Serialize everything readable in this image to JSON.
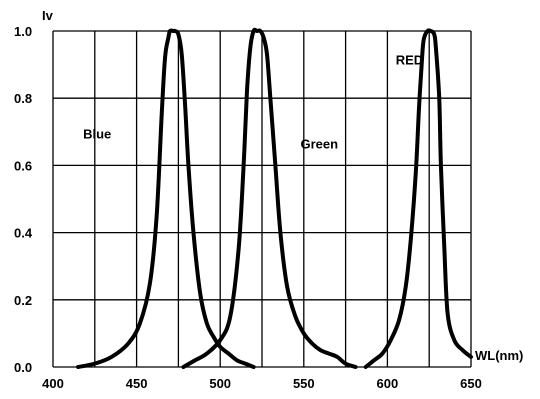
{
  "chart_data": {
    "type": "line",
    "ylabel": "Iv",
    "xlabel": "WL(nm)",
    "xlim": [
      400,
      650
    ],
    "ylim": [
      0,
      1.0
    ],
    "x_ticks": [
      "400",
      "450",
      "500",
      "550",
      "600",
      "650"
    ],
    "y_ticks": [
      "0.0",
      "0.2",
      "0.4",
      "0.6",
      "0.8",
      "1.0"
    ],
    "grid": true,
    "legend": "none",
    "series": [
      {
        "name": "Blue",
        "label_at": [
          418,
          0.68
        ],
        "x": [
          415,
          425,
          435,
          445,
          452,
          458,
          462,
          465,
          467,
          469,
          470,
          472,
          473,
          475,
          477,
          479,
          481,
          484,
          488,
          492,
          496,
          500,
          505,
          510,
          515,
          520
        ],
        "y": [
          0.0,
          0.01,
          0.03,
          0.07,
          0.13,
          0.25,
          0.45,
          0.75,
          0.92,
          0.98,
          1.0,
          1.0,
          1.0,
          0.99,
          0.93,
          0.78,
          0.6,
          0.4,
          0.22,
          0.13,
          0.09,
          0.06,
          0.04,
          0.02,
          0.01,
          0.0
        ]
      },
      {
        "name": "Green",
        "label_at": [
          548,
          0.65
        ],
        "x": [
          478,
          485,
          492,
          500,
          506,
          511,
          514,
          516,
          518,
          520,
          522,
          524,
          526,
          528,
          530,
          533,
          536,
          540,
          545,
          550,
          555,
          560,
          565,
          570,
          575,
          581
        ],
        "y": [
          0.0,
          0.02,
          0.04,
          0.08,
          0.15,
          0.35,
          0.6,
          0.82,
          0.95,
          1.0,
          1.0,
          1.0,
          0.98,
          0.93,
          0.8,
          0.6,
          0.4,
          0.24,
          0.15,
          0.1,
          0.07,
          0.05,
          0.04,
          0.03,
          0.01,
          0.0
        ]
      },
      {
        "name": "RED",
        "label_at": [
          605,
          0.9
        ],
        "x": [
          587,
          592,
          597,
          602,
          607,
          611,
          614,
          617,
          619,
          621,
          622,
          624,
          626,
          628,
          629,
          631,
          632,
          634,
          636,
          640,
          645,
          650
        ],
        "y": [
          0.0,
          0.02,
          0.04,
          0.08,
          0.14,
          0.24,
          0.38,
          0.58,
          0.78,
          0.94,
          0.98,
          1.0,
          1.0,
          0.99,
          0.95,
          0.8,
          0.6,
          0.36,
          0.16,
          0.08,
          0.05,
          0.03
        ]
      }
    ]
  }
}
